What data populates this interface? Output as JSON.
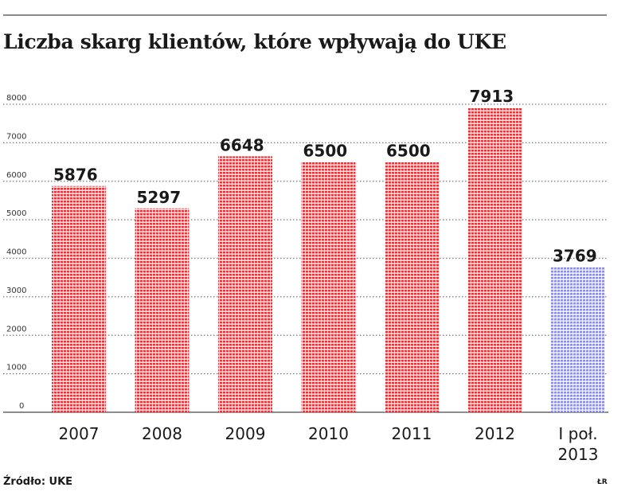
{
  "chart_data": {
    "type": "bar",
    "title": "Liczba skarg klientów, które wpływają do UKE",
    "categories": [
      "2007",
      "2008",
      "2009",
      "2010",
      "2011",
      "2012",
      "I poł.\n2013"
    ],
    "values": [
      5876,
      5297,
      6648,
      6500,
      6500,
      7913,
      3769
    ],
    "value_labels": [
      "5876",
      "5297",
      "6648",
      "6500",
      "6500",
      "7913",
      "3769"
    ],
    "bar_colors": [
      "#e8353a",
      "#e8353a",
      "#e8353a",
      "#e8353a",
      "#e8353a",
      "#e8353a",
      "#8d8dea"
    ],
    "ylim": [
      0,
      8000
    ],
    "yticks": [
      0,
      1000,
      2000,
      3000,
      4000,
      5000,
      6000,
      7000,
      8000
    ],
    "ytick_labels": [
      "0",
      "1000",
      "2000",
      "3000",
      "4000",
      "5000",
      "6000",
      "7000",
      "8000"
    ],
    "xlabel": "",
    "ylabel": "",
    "grid": true
  },
  "source": "Źródło: UKE",
  "credit": "ŁR",
  "colors": {
    "text": "#1a1a1a",
    "grid": "#7a7a7a",
    "rule": "#8c8c8c"
  }
}
